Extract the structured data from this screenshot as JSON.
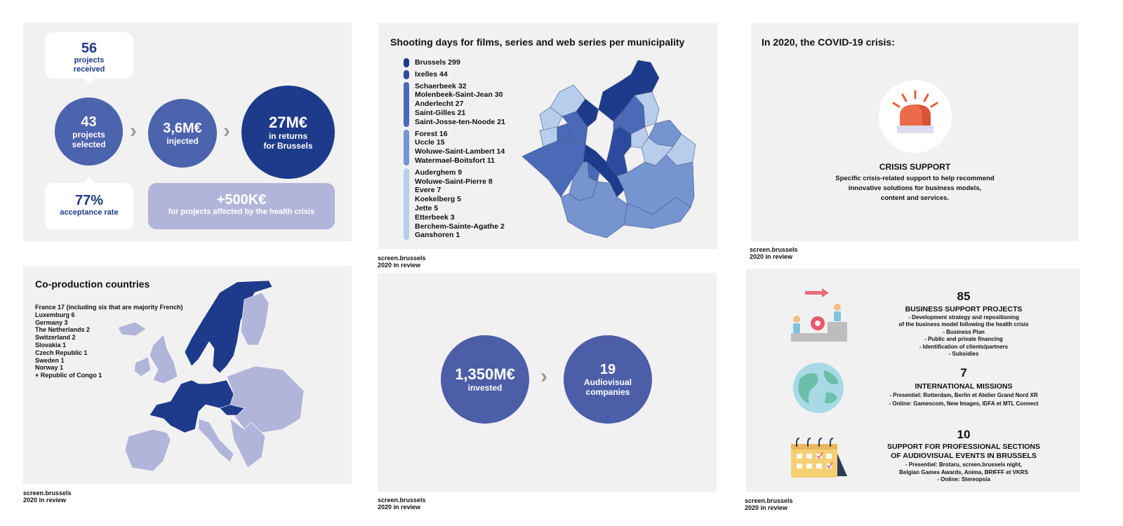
{
  "panel1": {
    "received": {
      "num": "56",
      "line1": "projects",
      "line2": "received"
    },
    "selected": {
      "num": "43",
      "line1": "projects",
      "line2": "selected"
    },
    "injected": {
      "num": "3,6M€",
      "line1": "injected"
    },
    "returns": {
      "num": "27M€",
      "line1": "in returns",
      "line2": "for Brussels"
    },
    "acceptance": {
      "num": "77%",
      "line1": "acceptance rate"
    },
    "health": {
      "num": "+500K€",
      "line1": "for projects affected by the health crisis"
    }
  },
  "panel2": {
    "title": "Shooting days for films, series and web series per municipality",
    "groups": [
      {
        "color": "#1e3a8a",
        "items": [
          "Brussels 299"
        ]
      },
      {
        "color": "#2c4a9e",
        "items": [
          "Ixelles 44"
        ]
      },
      {
        "color": "#4a6ab8",
        "items": [
          "Schaerbeek 32",
          "Molenbeek-Saint-Jean 30",
          "Anderlecht 27",
          "Saint-Gilles 21",
          "Saint-Josse-ten-Noode 21"
        ]
      },
      {
        "color": "#7594d0",
        "items": [
          "Forest 16",
          "Uccle 15",
          "Woluwe-Saint-Lambert 14",
          "Watermael-Boitsfort 11"
        ]
      },
      {
        "color": "#b8cdec",
        "items": [
          "Auderghem 9",
          "Woluwe-Saint-Pierre 8",
          "Evere 7",
          "Koekelberg 5",
          "Jette 5",
          "Etterbeek 3",
          "Berchem-Sainte-Agathe 2",
          "Ganshoren 1"
        ]
      }
    ]
  },
  "panel3": {
    "title": "In 2020, the COVID-19 crisis:",
    "heading": "CRISIS SUPPORT",
    "lines": [
      "Specific crisis-related support to help recommend",
      "innovative solutions for business models,",
      "content and services."
    ]
  },
  "panel4": {
    "title": "Co-production countries",
    "items": [
      "France 17 (including six that are majority French)",
      "Luxemburg 6",
      "Germany 3",
      "The Netherlands 2",
      "Switzerland 2",
      "Slovakia 1",
      "Czech Republic 1",
      "Sweden 1",
      "Norway 1",
      "+ Republic of Congo 1"
    ]
  },
  "panel5": {
    "invested": {
      "num": "1,350M€",
      "line1": "invested"
    },
    "companies": {
      "num": "19",
      "line1": "Audiovisual",
      "line2": "companies"
    }
  },
  "panel6": {
    "block1": {
      "num": "85",
      "heading": "BUSINESS SUPPORT PROJECTS",
      "lines": [
        "- Development strategy and repositioning",
        "of the business model following the health crisis",
        "- Business Plan",
        "- Public and private financing",
        "- Identification of clients/partners",
        "- Subsidies"
      ]
    },
    "block2": {
      "num": "7",
      "heading": "INTERNATIONAL MISSIONS",
      "lines": [
        "- Presentiel: Rotterdam, Berlin et Atelier Grand Nord XR",
        "- Online: Gamescom, New Images, IDFA et MTL Connect"
      ]
    },
    "block3": {
      "num": "10",
      "heading1": "SUPPORT FOR PROFESSIONAL SECTIONS",
      "heading2": "OF AUDIOVISUAL EVENTS IN BRUSSELS",
      "lines": [
        "- Presentiel: Brotaru, screen.brussels night,",
        "Belgian Games Awards, Anima, BRIFFF et VKRS",
        "- Online: Stereopsia"
      ]
    }
  },
  "footer": {
    "brand": "screen.brussels",
    "sub": "2020 in review"
  },
  "colors": {
    "navy": "#1e3a8a",
    "mid": "#4c63ad",
    "lavender": "#b2b5da",
    "panel": "#f1f1f1"
  }
}
